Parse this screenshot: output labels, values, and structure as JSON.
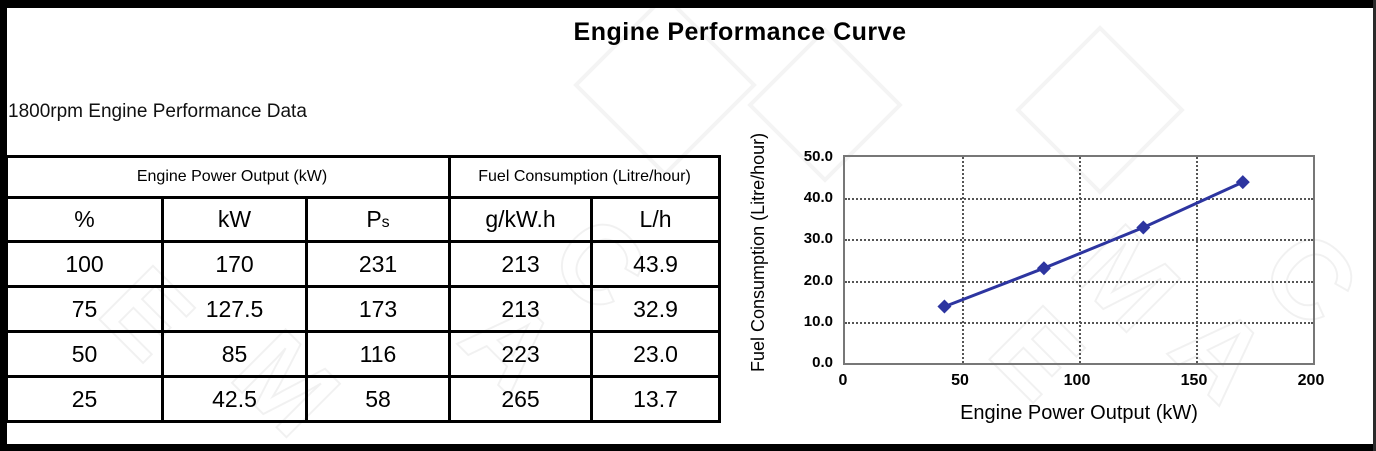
{
  "page": {
    "title": "Engine Performance Curve",
    "subtitle": "1800rpm Engine Performance Data"
  },
  "table": {
    "group_headers": [
      {
        "label": "Engine Power Output (kW)",
        "colspan": 3
      },
      {
        "label": "Fuel Consumption (Litre/hour)",
        "colspan": 2
      }
    ],
    "columns": [
      "%",
      "kW",
      {
        "main": "P",
        "sub": "s"
      },
      "g/kW.h",
      "L/h"
    ],
    "rows": [
      [
        "100",
        "170",
        "231",
        "213",
        "43.9"
      ],
      [
        "75",
        "127.5",
        "173",
        "213",
        "32.9"
      ],
      [
        "50",
        "85",
        "116",
        "223",
        "23.0"
      ],
      [
        "25",
        "42.5",
        "58",
        "265",
        "13.7"
      ]
    ]
  },
  "chart_data": {
    "type": "line",
    "title": "Engine Performance Curve",
    "xlabel": "Engine Power Output (kW)",
    "ylabel": "Fuel Consumption (Litre/hour)",
    "x": [
      42.5,
      85,
      127.5,
      170
    ],
    "y": [
      13.7,
      23.0,
      32.9,
      43.9
    ],
    "xlim": [
      0,
      200
    ],
    "ylim": [
      0,
      50
    ],
    "x_ticks": [
      "0",
      "50",
      "100",
      "150",
      "200"
    ],
    "y_ticks": [
      "50.0",
      "40.0",
      "30.0",
      "20.0",
      "10.0",
      "0.0"
    ],
    "grid": true,
    "legend": "none",
    "line_color": "#2d35a0",
    "marker": "diamond"
  },
  "watermark": {
    "text": "EMAC"
  }
}
